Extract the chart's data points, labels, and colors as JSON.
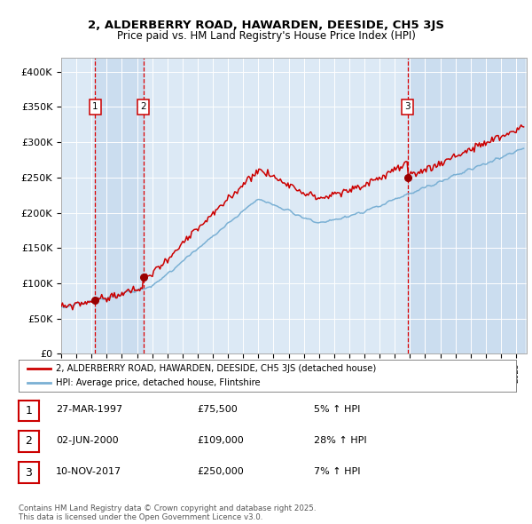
{
  "title1": "2, ALDERBERRY ROAD, HAWARDEN, DEESIDE, CH5 3JS",
  "title2": "Price paid vs. HM Land Registry's House Price Index (HPI)",
  "legend_red": "2, ALDERBERRY ROAD, HAWARDEN, DEESIDE, CH5 3JS (detached house)",
  "legend_blue": "HPI: Average price, detached house, Flintshire",
  "sale1_date": "27-MAR-1997",
  "sale1_price": 75500,
  "sale1_hpi": "5% ↑ HPI",
  "sale2_date": "02-JUN-2000",
  "sale2_price": 109000,
  "sale2_hpi": "28% ↑ HPI",
  "sale3_date": "10-NOV-2017",
  "sale3_price": 250000,
  "sale3_hpi": "7% ↑ HPI",
  "sale1_year": 1997.23,
  "sale2_year": 2000.42,
  "sale3_year": 2017.86,
  "ylim": [
    0,
    420000
  ],
  "yticks": [
    0,
    50000,
    100000,
    150000,
    200000,
    250000,
    300000,
    350000,
    400000
  ],
  "ytick_labels": [
    "£0",
    "£50K",
    "£100K",
    "£150K",
    "£200K",
    "£250K",
    "£300K",
    "£350K",
    "£400K"
  ],
  "footer": "Contains HM Land Registry data © Crown copyright and database right 2025.\nThis data is licensed under the Open Government Licence v3.0.",
  "bg_color": "#dce9f5",
  "red_color": "#cc0000",
  "blue_color": "#7ab0d4",
  "marker_color": "#990000",
  "vline_color": "#dd0000",
  "shade_color": "#c5d8ed"
}
